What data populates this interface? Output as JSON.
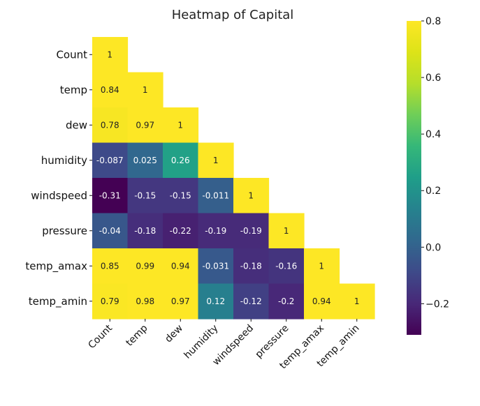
{
  "chart_data": {
    "type": "heatmap",
    "title": "Heatmap of Capital",
    "rows": [
      "Count",
      "temp",
      "dew",
      "humidity",
      "windspeed",
      "pressure",
      "temp_amax",
      "temp_amin"
    ],
    "columns": [
      "Count",
      "temp",
      "dew",
      "humidity",
      "windspeed",
      "pressure",
      "temp_amax",
      "temp_amin"
    ],
    "mask": "upper triangle hidden",
    "values": [
      [
        1
      ],
      [
        0.84,
        1
      ],
      [
        0.78,
        0.97,
        1
      ],
      [
        -0.087,
        0.025,
        0.26,
        1
      ],
      [
        -0.31,
        -0.15,
        -0.15,
        -0.011,
        1
      ],
      [
        -0.04,
        -0.18,
        -0.22,
        -0.19,
        -0.19,
        1
      ],
      [
        0.85,
        0.99,
        0.94,
        -0.031,
        -0.18,
        -0.16,
        1
      ],
      [
        0.79,
        0.98,
        0.97,
        0.12,
        -0.12,
        -0.2,
        0.94,
        1
      ]
    ],
    "labels": [
      [
        "1"
      ],
      [
        "0.84",
        "1"
      ],
      [
        "0.78",
        "0.97",
        "1"
      ],
      [
        "-0.087",
        "0.025",
        "0.26",
        "1"
      ],
      [
        "-0.31",
        "-0.15",
        "-0.15",
        "-0.011",
        "1"
      ],
      [
        "-0.04",
        "-0.18",
        "-0.22",
        "-0.19",
        "-0.19",
        "1"
      ],
      [
        "0.85",
        "0.99",
        "0.94",
        "-0.031",
        "-0.18",
        "-0.16",
        "1"
      ],
      [
        "0.79",
        "0.98",
        "0.97",
        "0.12",
        "-0.12",
        "-0.2",
        "0.94",
        "1"
      ]
    ],
    "colormap": "viridis",
    "color_range": [
      -0.31,
      0.8
    ],
    "colorbar": {
      "ticks": [
        0.8,
        0.6,
        0.4,
        0.2,
        0.0,
        -0.2
      ],
      "tick_labels": [
        "0.8",
        "0.6",
        "0.4",
        "0.2",
        "0.0",
        "−0.2"
      ],
      "placement": "right"
    }
  }
}
